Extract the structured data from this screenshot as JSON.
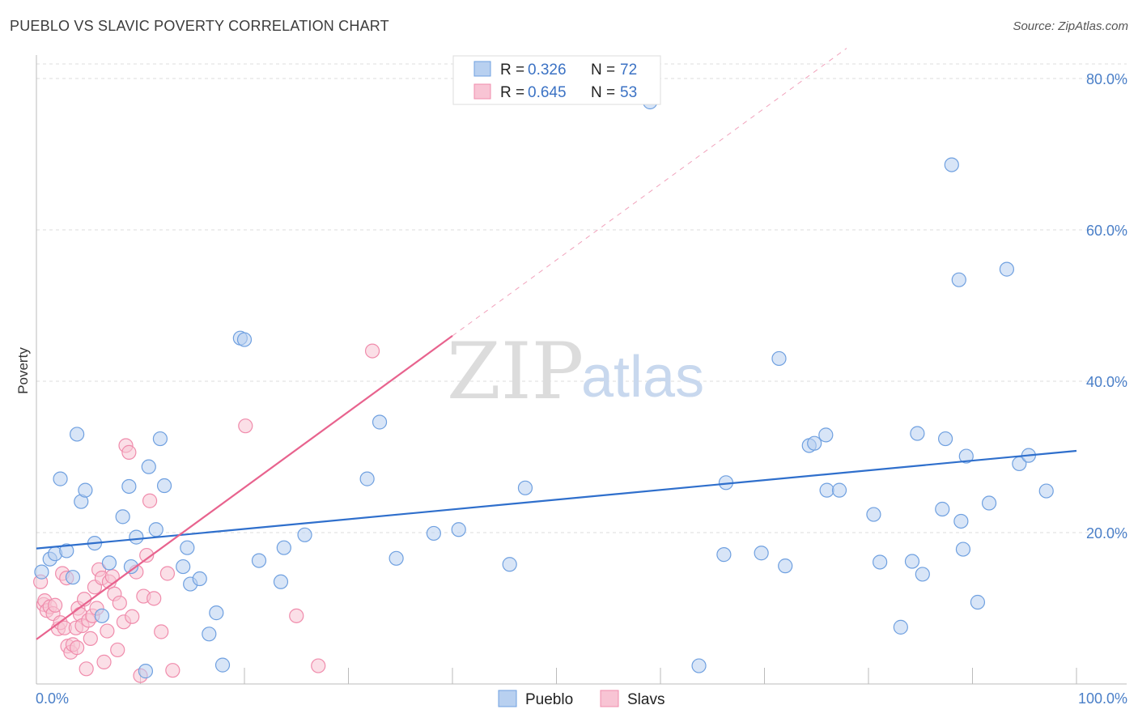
{
  "title": "PUEBLO VS SLAVIC POVERTY CORRELATION CHART",
  "source": "Source: ZipAtlas.com",
  "watermark": {
    "zip": "ZIP",
    "atlas": "atlas"
  },
  "chart_data": {
    "type": "scatter",
    "ylabel": "Poverty",
    "xlim": [
      0,
      100
    ],
    "ylim": [
      0,
      80
    ],
    "x_tick_labels": [
      {
        "value": 0,
        "label": "0.0%"
      },
      {
        "value": 100,
        "label": "100.0%"
      }
    ],
    "y_tick_labels": [
      {
        "value": 20,
        "label": "20.0%"
      },
      {
        "value": 40,
        "label": "40.0%"
      },
      {
        "value": 60,
        "label": "60.0%"
      },
      {
        "value": 80,
        "label": "80.0%"
      }
    ],
    "legend": [
      {
        "series": "Pueblo",
        "r_label": "R =",
        "r_value": "0.326",
        "n_label": "N =",
        "n_value": "72",
        "color": "#6fa0e0"
      },
      {
        "series": "Slavs",
        "r_label": "R =",
        "r_value": "0.645",
        "n_label": "N =",
        "n_value": "53",
        "color": "#f08cac"
      }
    ],
    "colors": {
      "pueblo_fill": "#b8d0f0",
      "pueblo_stroke": "#6fa0e0",
      "pueblo_line": "#2f6fcc",
      "slavs_fill": "#f8c4d4",
      "slavs_stroke": "#f08cac",
      "slavs_line": "#e8638e"
    },
    "series": [
      {
        "name": "Pueblo",
        "trend": {
          "x0": 0,
          "y0": 17.9,
          "x1": 100,
          "y1": 30.8
        },
        "points": [
          [
            0.5,
            14.8
          ],
          [
            1.3,
            16.5
          ],
          [
            1.8,
            17.2
          ],
          [
            2.3,
            27.1
          ],
          [
            2.9,
            17.6
          ],
          [
            3.5,
            14.1
          ],
          [
            3.9,
            33.0
          ],
          [
            4.3,
            24.1
          ],
          [
            4.7,
            25.6
          ],
          [
            5.6,
            18.6
          ],
          [
            6.3,
            9.0
          ],
          [
            7.0,
            16.0
          ],
          [
            8.3,
            22.1
          ],
          [
            8.9,
            26.1
          ],
          [
            9.1,
            15.5
          ],
          [
            9.6,
            19.4
          ],
          [
            10.5,
            1.7
          ],
          [
            10.8,
            28.7
          ],
          [
            11.5,
            20.4
          ],
          [
            11.9,
            32.4
          ],
          [
            12.3,
            26.2
          ],
          [
            14.1,
            15.5
          ],
          [
            14.5,
            18.0
          ],
          [
            14.8,
            13.2
          ],
          [
            15.7,
            13.9
          ],
          [
            16.6,
            6.6
          ],
          [
            17.3,
            9.4
          ],
          [
            17.9,
            2.5
          ],
          [
            19.6,
            45.7
          ],
          [
            20.0,
            45.5
          ],
          [
            21.4,
            16.3
          ],
          [
            23.5,
            13.5
          ],
          [
            23.8,
            18.0
          ],
          [
            25.8,
            19.7
          ],
          [
            31.8,
            27.1
          ],
          [
            33.0,
            34.6
          ],
          [
            34.6,
            16.6
          ],
          [
            38.2,
            19.9
          ],
          [
            40.6,
            20.4
          ],
          [
            45.5,
            15.8
          ],
          [
            47.0,
            25.9
          ],
          [
            59.0,
            76.9
          ],
          [
            63.7,
            2.4
          ],
          [
            66.1,
            17.1
          ],
          [
            66.3,
            26.6
          ],
          [
            69.7,
            17.3
          ],
          [
            71.4,
            43.0
          ],
          [
            72.0,
            15.6
          ],
          [
            74.3,
            31.5
          ],
          [
            74.8,
            31.8
          ],
          [
            75.9,
            32.9
          ],
          [
            76.0,
            25.6
          ],
          [
            77.2,
            25.6
          ],
          [
            80.5,
            22.4
          ],
          [
            81.1,
            16.1
          ],
          [
            83.1,
            7.5
          ],
          [
            84.2,
            16.2
          ],
          [
            84.7,
            33.1
          ],
          [
            85.2,
            14.5
          ],
          [
            87.1,
            23.1
          ],
          [
            87.4,
            32.4
          ],
          [
            88.0,
            68.6
          ],
          [
            88.7,
            53.4
          ],
          [
            88.9,
            21.5
          ],
          [
            89.1,
            17.8
          ],
          [
            89.4,
            30.1
          ],
          [
            90.5,
            10.8
          ],
          [
            91.6,
            23.9
          ],
          [
            93.3,
            54.8
          ],
          [
            94.5,
            29.1
          ],
          [
            95.4,
            30.2
          ],
          [
            97.1,
            25.5
          ]
        ]
      },
      {
        "name": "Slavs",
        "trend": {
          "x0": 0,
          "y0": 5.9,
          "x1": 40,
          "y1": 46.0
        },
        "points": [
          [
            0.4,
            13.5
          ],
          [
            0.7,
            10.5
          ],
          [
            0.8,
            11.0
          ],
          [
            1.0,
            9.7
          ],
          [
            1.3,
            10.2
          ],
          [
            1.6,
            9.3
          ],
          [
            1.8,
            10.4
          ],
          [
            2.1,
            7.3
          ],
          [
            2.3,
            8.1
          ],
          [
            2.5,
            14.6
          ],
          [
            2.7,
            7.4
          ],
          [
            2.9,
            14.0
          ],
          [
            3.0,
            5.0
          ],
          [
            3.3,
            4.2
          ],
          [
            3.5,
            5.2
          ],
          [
            3.8,
            7.4
          ],
          [
            4.0,
            10.0
          ],
          [
            4.2,
            9.2
          ],
          [
            4.4,
            7.7
          ],
          [
            4.6,
            11.2
          ],
          [
            4.8,
            2.0
          ],
          [
            5.0,
            8.4
          ],
          [
            5.2,
            6.0
          ],
          [
            5.4,
            9.0
          ],
          [
            5.6,
            12.8
          ],
          [
            5.8,
            10.0
          ],
          [
            6.0,
            15.1
          ],
          [
            6.3,
            14.0
          ],
          [
            6.5,
            2.9
          ],
          [
            6.8,
            7.0
          ],
          [
            7.0,
            13.5
          ],
          [
            7.3,
            14.2
          ],
          [
            7.5,
            11.9
          ],
          [
            7.8,
            4.5
          ],
          [
            8.0,
            10.7
          ],
          [
            8.4,
            8.2
          ],
          [
            8.6,
            31.5
          ],
          [
            8.9,
            30.6
          ],
          [
            9.2,
            8.9
          ],
          [
            9.6,
            14.8
          ],
          [
            10.0,
            1.1
          ],
          [
            10.3,
            11.6
          ],
          [
            10.6,
            17.0
          ],
          [
            10.9,
            24.2
          ],
          [
            11.3,
            11.3
          ],
          [
            12.0,
            6.9
          ],
          [
            12.6,
            14.6
          ],
          [
            13.1,
            1.8
          ],
          [
            20.1,
            34.1
          ],
          [
            25.0,
            9.0
          ],
          [
            27.1,
            2.4
          ],
          [
            32.3,
            44.0
          ],
          [
            3.9,
            4.8
          ]
        ]
      }
    ]
  }
}
